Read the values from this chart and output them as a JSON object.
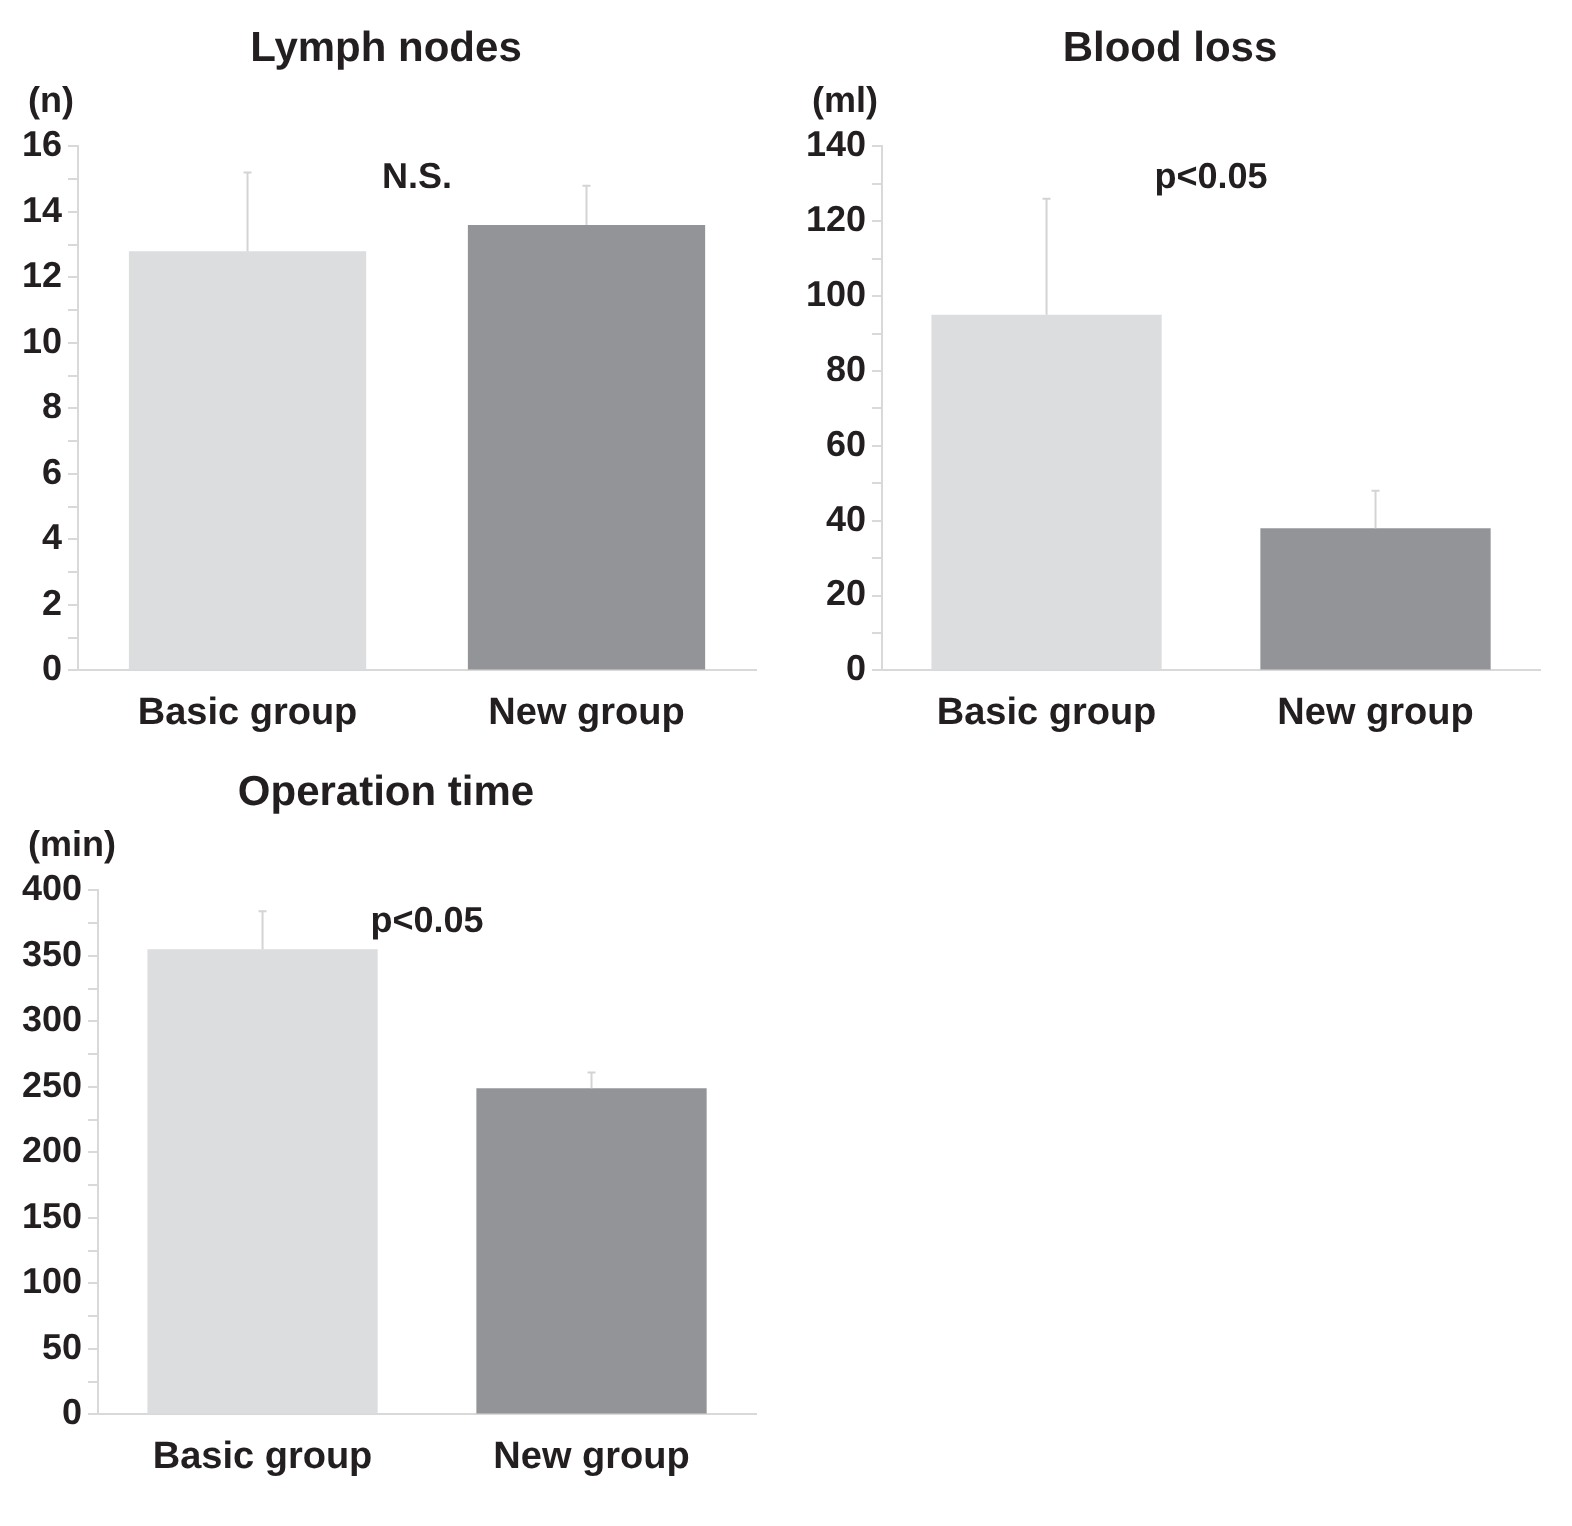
{
  "chart_data": [
    {
      "type": "bar",
      "title": "Lymph nodes",
      "ylabel": "(n)",
      "categories": [
        "Basic group",
        "New group"
      ],
      "values": [
        12.8,
        13.6
      ],
      "colors": [
        "#dcdddf",
        "#939497"
      ],
      "errors": [
        [
          12.8,
          15.2
        ],
        [
          13.6,
          14.8
        ]
      ],
      "annotations": [
        "N.S."
      ],
      "ylim": [
        0,
        16
      ],
      "yticks": [
        0,
        {
          "value": 1,
          "label": null
        },
        2,
        {
          "value": 3,
          "label": null
        },
        4,
        {
          "value": 5,
          "label": null
        },
        6,
        {
          "value": 7,
          "label": null
        },
        8,
        {
          "value": 9,
          "label": null
        },
        10,
        {
          "value": 11,
          "label": null
        },
        12,
        {
          "value": 13,
          "label": null
        },
        14,
        {
          "value": 15,
          "label": null
        },
        16
      ],
      "grid": false,
      "legend": false
    },
    {
      "type": "bar",
      "title": "Blood loss",
      "ylabel": "(ml)",
      "categories": [
        "Basic group",
        "New group"
      ],
      "values": [
        95,
        38
      ],
      "colors": [
        "#dcdddf",
        "#939497"
      ],
      "errors": [
        [
          95,
          126
        ],
        [
          38,
          48
        ]
      ],
      "annotations": [
        "p<0.05"
      ],
      "ylim": [
        0,
        140
      ],
      "yticks": [
        0,
        {
          "value": 10,
          "label": null
        },
        20,
        {
          "value": 30,
          "label": null
        },
        40,
        {
          "value": 50,
          "label": null
        },
        60,
        {
          "value": 70,
          "label": null
        },
        80,
        {
          "value": 90,
          "label": null
        },
        100,
        {
          "value": 110,
          "label": null
        },
        120,
        {
          "value": 130,
          "label": null
        },
        140
      ],
      "grid": false,
      "legend": false
    },
    {
      "type": "bar",
      "title": "Operation time",
      "ylabel": "(min)",
      "categories": [
        "Basic group",
        "New group"
      ],
      "values": [
        355,
        249
      ],
      "colors": [
        "#dcdddf",
        "#939497"
      ],
      "errors": [
        [
          355,
          384
        ],
        [
          249,
          261
        ]
      ],
      "annotations": [
        "p<0.05"
      ],
      "ylim": [
        0,
        400
      ],
      "yticks": [
        0,
        {
          "value": 25,
          "label": null
        },
        50,
        {
          "value": 75,
          "label": null
        },
        100,
        {
          "value": 125,
          "label": null
        },
        150,
        {
          "value": 175,
          "label": null
        },
        200,
        {
          "value": 225,
          "label": null
        },
        250,
        {
          "value": 275,
          "label": null
        },
        300,
        {
          "value": 325,
          "label": null
        },
        350,
        {
          "value": 375,
          "label": null
        },
        400
      ],
      "grid": false,
      "legend": false
    }
  ]
}
